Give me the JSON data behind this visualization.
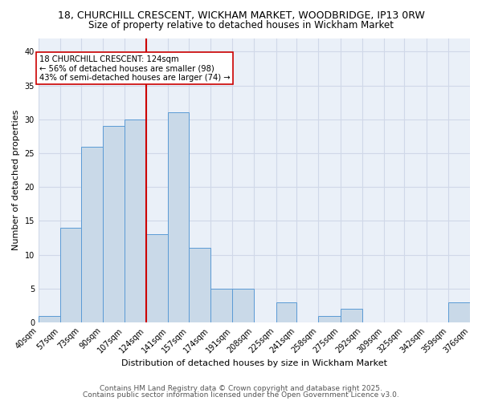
{
  "title_line1": "18, CHURCHILL CRESCENT, WICKHAM MARKET, WOODBRIDGE, IP13 0RW",
  "title_line2": "Size of property relative to detached houses in Wickham Market",
  "xlabel": "Distribution of detached houses by size in Wickham Market",
  "ylabel": "Number of detached properties",
  "bar_color": "#c9d9e8",
  "bar_edge_color": "#5b9bd5",
  "vline_color": "#cc0000",
  "vline_x": 124,
  "annotation_text": "18 CHURCHILL CRESCENT: 124sqm\n← 56% of detached houses are smaller (98)\n43% of semi-detached houses are larger (74) →",
  "annotation_box_edge_color": "#cc0000",
  "bins": [
    40,
    57,
    73,
    90,
    107,
    124,
    141,
    157,
    174,
    191,
    208,
    225,
    241,
    258,
    275,
    292,
    309,
    325,
    342,
    359,
    376
  ],
  "counts": [
    1,
    14,
    26,
    29,
    30,
    13,
    31,
    11,
    5,
    5,
    0,
    3,
    0,
    1,
    2,
    0,
    0,
    0,
    0,
    3
  ],
  "ylim": [
    0,
    42
  ],
  "yticks": [
    0,
    5,
    10,
    15,
    20,
    25,
    30,
    35,
    40
  ],
  "grid_color": "#d0d8e8",
  "bg_color": "#eaf0f8",
  "footer_line1": "Contains HM Land Registry data © Crown copyright and database right 2025.",
  "footer_line2": "Contains public sector information licensed under the Open Government Licence v3.0.",
  "title_fontsize": 9,
  "subtitle_fontsize": 8.5,
  "axis_label_fontsize": 8,
  "tick_label_fontsize": 7,
  "footer_fontsize": 6.5
}
